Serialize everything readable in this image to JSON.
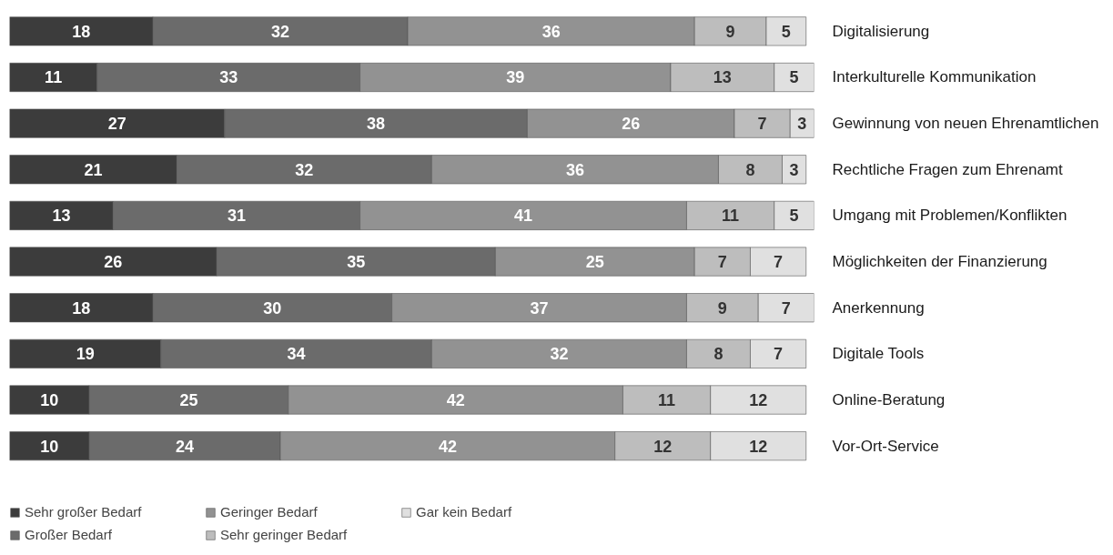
{
  "chart_data": {
    "type": "bar",
    "orientation": "horizontal",
    "stacked": true,
    "data_labels": true,
    "legend": "bottom left",
    "categories": [
      "Digitalisierung",
      "Interkulturelle Kommunikation",
      "Gewinnung von neuen Ehrenamtlichen",
      "Rechtliche Fragen zum Ehrenamt",
      "Umgang mit Problemen/Konflikten",
      "Möglichkeiten der Finanzierung",
      "Anerkennung",
      "Digitale Tools",
      "Online-Beratung",
      "Vor-Ort-Service"
    ],
    "series": [
      {
        "name": "Sehr großer Bedarf",
        "color": "#3c3c3c",
        "values": [
          18,
          11,
          27,
          21,
          13,
          26,
          18,
          19,
          10,
          10
        ]
      },
      {
        "name": "Großer Bedarf",
        "color": "#6b6b6b",
        "values": [
          32,
          33,
          38,
          32,
          31,
          35,
          30,
          34,
          25,
          24
        ]
      },
      {
        "name": "Geringer Bedarf",
        "color": "#929292",
        "values": [
          36,
          39,
          26,
          36,
          41,
          25,
          37,
          32,
          42,
          42
        ]
      },
      {
        "name": "Sehr geringer Bedarf",
        "color": "#bdbdbd",
        "values": [
          9,
          13,
          7,
          8,
          11,
          7,
          9,
          8,
          11,
          12
        ]
      },
      {
        "name": "Gar kein Bedarf",
        "color": "#e0e0e0",
        "values": [
          5,
          5,
          3,
          3,
          5,
          7,
          7,
          7,
          12,
          12
        ]
      }
    ]
  }
}
